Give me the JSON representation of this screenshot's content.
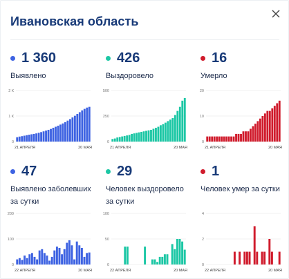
{
  "header": {
    "title": "Ивановская область"
  },
  "colors": {
    "blue": "#3e63e2",
    "teal": "#1cc7a5",
    "red": "#d01b2c",
    "navy": "#183a78"
  },
  "stats": [
    {
      "value": "1 360",
      "label": "Выявлено",
      "color": "#3e63e2"
    },
    {
      "value": "426",
      "label": "Выздоровело",
      "color": "#1cc7a5"
    },
    {
      "value": "16",
      "label": "Умерло",
      "color": "#d01b2c"
    },
    {
      "value": "47",
      "label": "Выявлено заболевших за сутки",
      "color": "#3e63e2"
    },
    {
      "value": "29",
      "label": "Человек выздоровело за сутки",
      "color": "#1cc7a5"
    },
    {
      "value": "1",
      "label": "Человек умер за сутки",
      "color": "#d01b2c"
    }
  ],
  "chart_data": [
    {
      "type": "bar",
      "color": "#3e63e2",
      "yticks": [
        "2 К",
        "1 К",
        "0"
      ],
      "ylim": [
        0,
        2000
      ],
      "x_start": "21 АПРЕЛЯ",
      "x_end": "20 МАЯ",
      "values": [
        170,
        195,
        210,
        230,
        250,
        270,
        285,
        300,
        320,
        345,
        370,
        400,
        430,
        460,
        495,
        540,
        580,
        620,
        665,
        710,
        760,
        820,
        880,
        945,
        1010,
        1080,
        1150,
        1220,
        1280,
        1330,
        1360
      ]
    },
    {
      "type": "bar",
      "color": "#1cc7a5",
      "yticks": [
        "500",
        "250",
        "0"
      ],
      "ylim": [
        0,
        500
      ],
      "x_start": "21 АПРЕЛЯ",
      "x_end": "20 МАЯ",
      "values": [
        25,
        30,
        40,
        45,
        50,
        55,
        60,
        65,
        75,
        80,
        85,
        90,
        95,
        100,
        105,
        110,
        115,
        125,
        135,
        145,
        160,
        170,
        185,
        200,
        215,
        230,
        260,
        300,
        340,
        400,
        426
      ]
    },
    {
      "type": "bar",
      "color": "#d01b2c",
      "yticks": [
        "20",
        "10",
        "0"
      ],
      "ylim": [
        0,
        20
      ],
      "x_start": "21 АПРЕЛЯ",
      "x_end": "20 МАЯ",
      "values": [
        2,
        2,
        2,
        2,
        2,
        2,
        2,
        2,
        2,
        2,
        2,
        2,
        3,
        3,
        3,
        4,
        4,
        4,
        5,
        6,
        7,
        8,
        9,
        10,
        11,
        12,
        12,
        13,
        14,
        15,
        16
      ]
    },
    {
      "type": "bar",
      "color": "#3e63e2",
      "yticks": [
        "200",
        "100",
        "0"
      ],
      "ylim": [
        0,
        200
      ],
      "x_start": "22 АПРЕЛЯ",
      "x_end": "20 МАЯ",
      "values": [
        20,
        25,
        18,
        35,
        25,
        40,
        45,
        30,
        20,
        55,
        60,
        45,
        35,
        15,
        30,
        55,
        70,
        65,
        40,
        60,
        85,
        95,
        75,
        20,
        90,
        75,
        65,
        30,
        45,
        47
      ]
    },
    {
      "type": "bar",
      "color": "#1cc7a5",
      "yticks": [
        "100",
        "50",
        "0"
      ],
      "ylim": [
        0,
        100
      ],
      "x_start": "22 АПРЕЛЯ",
      "x_end": "20 МАЯ",
      "values": [
        0,
        0,
        0,
        0,
        0,
        35,
        35,
        0,
        0,
        0,
        0,
        0,
        0,
        35,
        0,
        0,
        10,
        10,
        5,
        15,
        15,
        20,
        20,
        0,
        40,
        30,
        50,
        50,
        45,
        29
      ]
    },
    {
      "type": "bar",
      "color": "#d01b2c",
      "yticks": [
        "4",
        "2",
        "0"
      ],
      "ylim": [
        0,
        4
      ],
      "x_start": "22 АПРЕЛЯ",
      "x_end": "20 МАЯ",
      "values": [
        0,
        0,
        0,
        0,
        0,
        0,
        0,
        0,
        0,
        0,
        0,
        1,
        0,
        1,
        0,
        1,
        1,
        1,
        0,
        3,
        1,
        0,
        1,
        1,
        0,
        2,
        1,
        0,
        0,
        1
      ]
    }
  ]
}
